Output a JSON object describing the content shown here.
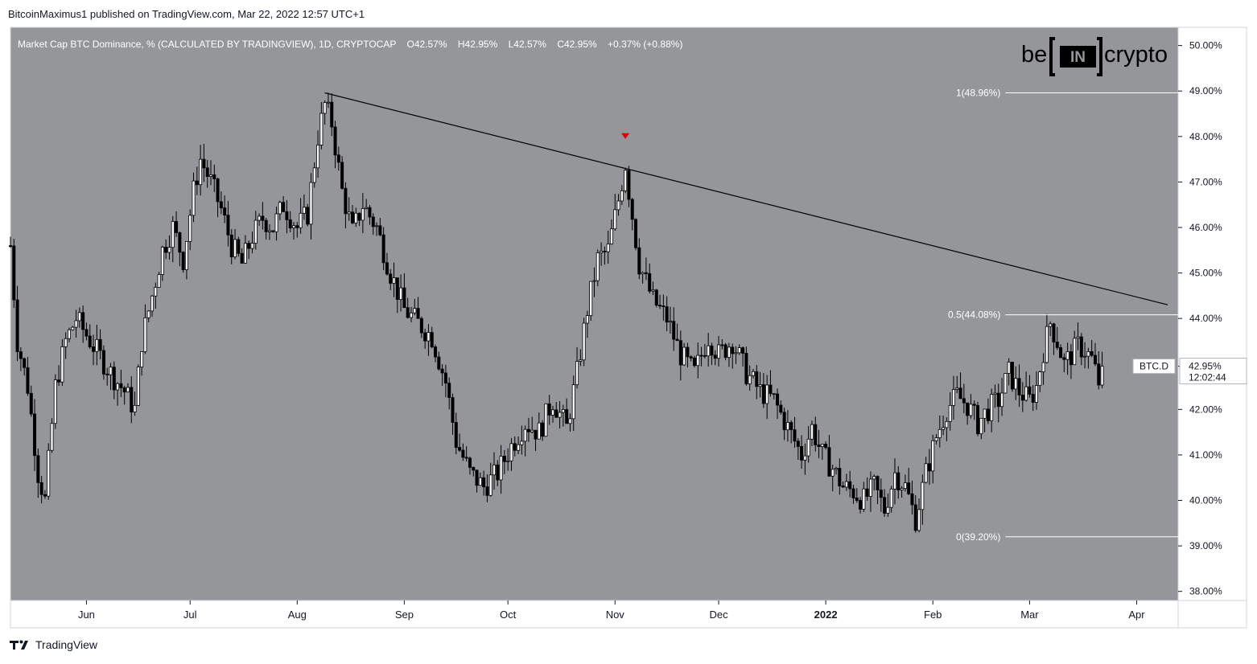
{
  "attribution": "BitcoinMaximus1 published on TradingView.com, Mar 22, 2022 12:57 UTC+1",
  "footer": {
    "brand": "TradingView"
  },
  "colors": {
    "pane_bg": "#949699",
    "candle": "#000000",
    "border": "#d1d4dc",
    "marker": "#e00000",
    "brand_text": "#000000"
  },
  "watermark": {
    "left": "be",
    "box": "IN",
    "right": "crypto"
  },
  "chart_data": {
    "type": "candlestick",
    "symbol_ticker": "BTC.D",
    "header": {
      "title": "Market Cap BTC Dominance, % (CALCULATED BY TRADINGVIEW), 1D, CRYPTOCAP",
      "o_label": "O",
      "o_value": "42.57%",
      "h_label": "H",
      "h_value": "42.95%",
      "l_label": "L",
      "l_value": "42.57%",
      "c_label": "C",
      "c_value": "42.95%",
      "change": "+0.37% (+0.88%)"
    },
    "ylim": [
      37.8,
      50.4
    ],
    "y_ticks": [
      {
        "v": 50,
        "label": "50.00%"
      },
      {
        "v": 49,
        "label": "49.00%"
      },
      {
        "v": 48,
        "label": "48.00%"
      },
      {
        "v": 47,
        "label": "47.00%"
      },
      {
        "v": 46,
        "label": "46.00%"
      },
      {
        "v": 45,
        "label": "45.00%"
      },
      {
        "v": 44,
        "label": "44.00%"
      },
      {
        "v": 42,
        "label": "42.00%"
      },
      {
        "v": 41,
        "label": "41.00%"
      },
      {
        "v": 40,
        "label": "40.00%"
      },
      {
        "v": 39,
        "label": "39.00%"
      },
      {
        "v": 38,
        "label": "38.00%"
      }
    ],
    "x_ticks": [
      {
        "date": "2021-06-01",
        "label": "Jun",
        "bold": false
      },
      {
        "date": "2021-07-01",
        "label": "Jul",
        "bold": false
      },
      {
        "date": "2021-08-01",
        "label": "Aug",
        "bold": false
      },
      {
        "date": "2021-09-01",
        "label": "Sep",
        "bold": false
      },
      {
        "date": "2021-10-01",
        "label": "Oct",
        "bold": false
      },
      {
        "date": "2021-11-01",
        "label": "Nov",
        "bold": false
      },
      {
        "date": "2021-12-01",
        "label": "Dec",
        "bold": false
      },
      {
        "date": "2022-01-01",
        "label": "2022",
        "bold": true
      },
      {
        "date": "2022-02-01",
        "label": "Feb",
        "bold": false
      },
      {
        "date": "2022-03-01",
        "label": "Mar",
        "bold": false
      },
      {
        "date": "2022-04-01",
        "label": "Apr",
        "bold": false
      }
    ],
    "x_range": [
      "2021-05-10",
      "2022-04-13"
    ],
    "series_start": "2021-05-10",
    "series_end": "2022-03-22",
    "anchors": [
      [
        "2021-05-10",
        45.6
      ],
      [
        "2021-05-12",
        43.5
      ],
      [
        "2021-05-15",
        42.5
      ],
      [
        "2021-05-18",
        40.6
      ],
      [
        "2021-05-20",
        40.0
      ],
      [
        "2021-05-23",
        42.5
      ],
      [
        "2021-05-26",
        43.5
      ],
      [
        "2021-05-29",
        44.0
      ],
      [
        "2021-06-03",
        43.4
      ],
      [
        "2021-06-08",
        42.8
      ],
      [
        "2021-06-12",
        42.4
      ],
      [
        "2021-06-15",
        42.0
      ],
      [
        "2021-06-17",
        43.5
      ],
      [
        "2021-06-20",
        44.5
      ],
      [
        "2021-06-23",
        45.5
      ],
      [
        "2021-06-26",
        46.0
      ],
      [
        "2021-06-29",
        45.3
      ],
      [
        "2021-07-02",
        46.8
      ],
      [
        "2021-07-04",
        47.5
      ],
      [
        "2021-07-07",
        47.0
      ],
      [
        "2021-07-10",
        46.4
      ],
      [
        "2021-07-13",
        45.6
      ],
      [
        "2021-07-16",
        45.2
      ],
      [
        "2021-07-19",
        45.8
      ],
      [
        "2021-07-22",
        46.2
      ],
      [
        "2021-07-25",
        46.0
      ],
      [
        "2021-07-28",
        46.5
      ],
      [
        "2021-08-01",
        46.0
      ],
      [
        "2021-08-04",
        46.3
      ],
      [
        "2021-08-07",
        48.0
      ],
      [
        "2021-08-09",
        48.7
      ],
      [
        "2021-08-11",
        48.3
      ],
      [
        "2021-08-14",
        46.8
      ],
      [
        "2021-08-17",
        45.9
      ],
      [
        "2021-08-20",
        46.5
      ],
      [
        "2021-08-24",
        46.0
      ],
      [
        "2021-08-28",
        45.0
      ],
      [
        "2021-09-01",
        44.2
      ],
      [
        "2021-09-05",
        43.9
      ],
      [
        "2021-09-09",
        43.6
      ],
      [
        "2021-09-13",
        42.6
      ],
      [
        "2021-09-16",
        41.3
      ],
      [
        "2021-09-20",
        40.6
      ],
      [
        "2021-09-24",
        40.3
      ],
      [
        "2021-09-28",
        40.6
      ],
      [
        "2021-10-02",
        41.2
      ],
      [
        "2021-10-06",
        41.7
      ],
      [
        "2021-10-10",
        41.5
      ],
      [
        "2021-10-14",
        42.2
      ],
      [
        "2021-10-18",
        41.6
      ],
      [
        "2021-10-21",
        42.8
      ],
      [
        "2021-10-24",
        44.2
      ],
      [
        "2021-10-27",
        45.3
      ],
      [
        "2021-10-30",
        45.5
      ],
      [
        "2021-11-02",
        46.6
      ],
      [
        "2021-11-04",
        47.4
      ],
      [
        "2021-11-05",
        46.8
      ],
      [
        "2021-11-08",
        45.2
      ],
      [
        "2021-11-12",
        44.4
      ],
      [
        "2021-11-16",
        44.0
      ],
      [
        "2021-11-20",
        43.2
      ],
      [
        "2021-11-24",
        42.8
      ],
      [
        "2021-11-28",
        43.6
      ],
      [
        "2021-12-01",
        43.2
      ],
      [
        "2021-12-05",
        43.5
      ],
      [
        "2021-12-09",
        42.8
      ],
      [
        "2021-12-13",
        42.4
      ],
      [
        "2021-12-17",
        42.2
      ],
      [
        "2021-12-21",
        41.6
      ],
      [
        "2021-12-25",
        41.0
      ],
      [
        "2021-12-28",
        41.6
      ],
      [
        "2021-12-31",
        41.0
      ],
      [
        "2022-01-03",
        40.7
      ],
      [
        "2022-01-06",
        40.3
      ],
      [
        "2022-01-09",
        40.2
      ],
      [
        "2022-01-12",
        40.0
      ],
      [
        "2022-01-15",
        40.3
      ],
      [
        "2022-01-18",
        39.8
      ],
      [
        "2022-01-21",
        40.6
      ],
      [
        "2022-01-24",
        40.3
      ],
      [
        "2022-01-27",
        39.6
      ],
      [
        "2022-01-30",
        40.6
      ],
      [
        "2022-02-02",
        41.4
      ],
      [
        "2022-02-05",
        42.0
      ],
      [
        "2022-02-08",
        42.3
      ],
      [
        "2022-02-11",
        42.1
      ],
      [
        "2022-02-14",
        41.7
      ],
      [
        "2022-02-17",
        42.0
      ],
      [
        "2022-02-20",
        42.2
      ],
      [
        "2022-02-23",
        42.8
      ],
      [
        "2022-02-26",
        42.4
      ],
      [
        "2022-03-01",
        42.2
      ],
      [
        "2022-03-03",
        42.5
      ],
      [
        "2022-03-05",
        43.3
      ],
      [
        "2022-03-07",
        43.9
      ],
      [
        "2022-03-09",
        43.5
      ],
      [
        "2022-03-11",
        43.0
      ],
      [
        "2022-03-13",
        43.2
      ],
      [
        "2022-03-15",
        43.4
      ],
      [
        "2022-03-17",
        43.3
      ],
      [
        "2022-03-19",
        43.1
      ],
      [
        "2022-03-21",
        42.6
      ],
      [
        "2022-03-22",
        42.95
      ]
    ],
    "trendline": {
      "from": [
        "2021-08-09",
        48.96
      ],
      "to": [
        "2022-04-10",
        44.3
      ]
    },
    "fib_levels": [
      {
        "value": 48.96,
        "label": "1(48.96%)"
      },
      {
        "value": 44.08,
        "label": "0.5(44.08%)"
      },
      {
        "value": 39.2,
        "label": "0(39.20%)"
      }
    ],
    "fib_line": {
      "from": "2022-02-22",
      "to": "2022-04-14"
    },
    "marker": {
      "date": "2021-11-04",
      "value": 48.0
    },
    "price_label": {
      "value": 42.95,
      "price": "42.95%",
      "countdown": "12:02:44"
    }
  }
}
